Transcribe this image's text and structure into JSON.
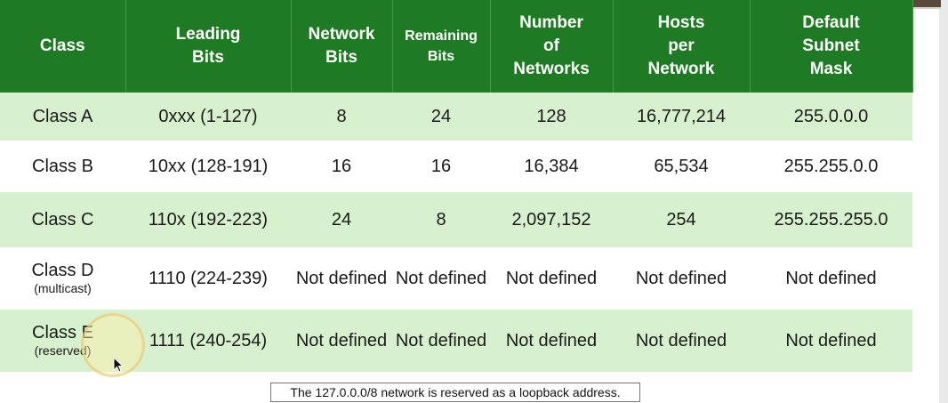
{
  "table": {
    "headers": [
      [
        "Class"
      ],
      [
        "Leading",
        "Bits"
      ],
      [
        "Network",
        "Bits"
      ],
      [
        "Remaining",
        "Bits"
      ],
      [
        "Number",
        "of",
        "Networks"
      ],
      [
        "Hosts",
        "per",
        "Network"
      ],
      [
        "Default",
        "Subnet",
        "Mask"
      ]
    ],
    "rows": [
      {
        "class": "Class A",
        "class_note": "",
        "leading": "0xxx (1-127)",
        "network_bits": "8",
        "remaining_bits": "24",
        "num_networks": "128",
        "hosts": "16,777,214",
        "mask": "255.0.0.0"
      },
      {
        "class": "Class B",
        "class_note": "",
        "leading": "10xx (128-191)",
        "network_bits": "16",
        "remaining_bits": "16",
        "num_networks": "16,384",
        "hosts": "65,534",
        "mask": "255.255.0.0"
      },
      {
        "class": "Class C",
        "class_note": "",
        "leading": "110x (192-223)",
        "network_bits": "24",
        "remaining_bits": "8",
        "num_networks": "2,097,152",
        "hosts": "254",
        "mask": "255.255.255.0"
      },
      {
        "class": "Class D",
        "class_note": "(multicast)",
        "leading": "1110 (224-239)",
        "network_bits": "Not defined",
        "remaining_bits": "Not defined",
        "num_networks": "Not defined",
        "hosts": "Not defined",
        "mask": "Not defined"
      },
      {
        "class": "Class E",
        "class_note": "(reserved)",
        "leading": "1111 (240-254)",
        "network_bits": "Not defined",
        "remaining_bits": "Not defined",
        "num_networks": "Not defined",
        "hosts": "Not defined",
        "mask": "Not defined"
      }
    ]
  },
  "footnote": "The 127.0.0.0/8 network is reserved as a loopback address.",
  "colors": {
    "header_bg": "#1f7a24",
    "row_alt_bg": "#d7f0cd",
    "row_bg": "#ffffff"
  }
}
